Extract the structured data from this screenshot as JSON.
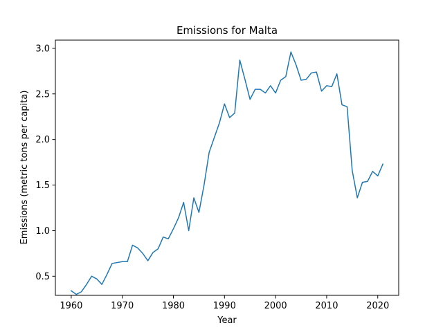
{
  "chart_data": {
    "type": "line",
    "title": "Emissions for Malta",
    "xlabel": "Year",
    "ylabel": "Emissions (metric tons per capita)",
    "xlim": [
      1956.9,
      2024.1
    ],
    "ylim": [
      0.29,
      3.09
    ],
    "xticks": [
      1960,
      1970,
      1980,
      1990,
      2000,
      2010,
      2020
    ],
    "yticks": [
      0.5,
      1.0,
      1.5,
      2.0,
      2.5,
      3.0
    ],
    "ytick_labels": [
      "0.5",
      "1.0",
      "1.5",
      "2.0",
      "2.5",
      "3.0"
    ],
    "grid": false,
    "series": [
      {
        "color": "#1f77b4",
        "x": [
          1960,
          1961,
          1962,
          1963,
          1964,
          1965,
          1966,
          1967,
          1968,
          1969,
          1970,
          1971,
          1972,
          1973,
          1974,
          1975,
          1976,
          1977,
          1978,
          1979,
          1980,
          1981,
          1982,
          1983,
          1984,
          1985,
          1986,
          1987,
          1988,
          1989,
          1990,
          1991,
          1992,
          1993,
          1994,
          1995,
          1996,
          1997,
          1998,
          1999,
          2000,
          2001,
          2002,
          2003,
          2004,
          2005,
          2006,
          2007,
          2008,
          2009,
          2010,
          2011,
          2012,
          2013,
          2014,
          2015,
          2016,
          2017,
          2018,
          2019,
          2020,
          2021
        ],
        "y": [
          0.34,
          0.3,
          0.33,
          0.41,
          0.5,
          0.47,
          0.41,
          0.52,
          0.64,
          0.65,
          0.66,
          0.66,
          0.84,
          0.81,
          0.75,
          0.67,
          0.76,
          0.8,
          0.93,
          0.91,
          1.02,
          1.14,
          1.31,
          1.0,
          1.36,
          1.2,
          1.5,
          1.86,
          2.02,
          2.18,
          2.39,
          2.24,
          2.29,
          2.87,
          2.66,
          2.44,
          2.55,
          2.55,
          2.51,
          2.59,
          2.51,
          2.65,
          2.69,
          2.96,
          2.82,
          2.65,
          2.66,
          2.73,
          2.74,
          2.53,
          2.59,
          2.58,
          2.72,
          2.38,
          2.36,
          1.66,
          1.36,
          1.53,
          1.54,
          1.65,
          1.6,
          1.73
        ]
      }
    ]
  }
}
